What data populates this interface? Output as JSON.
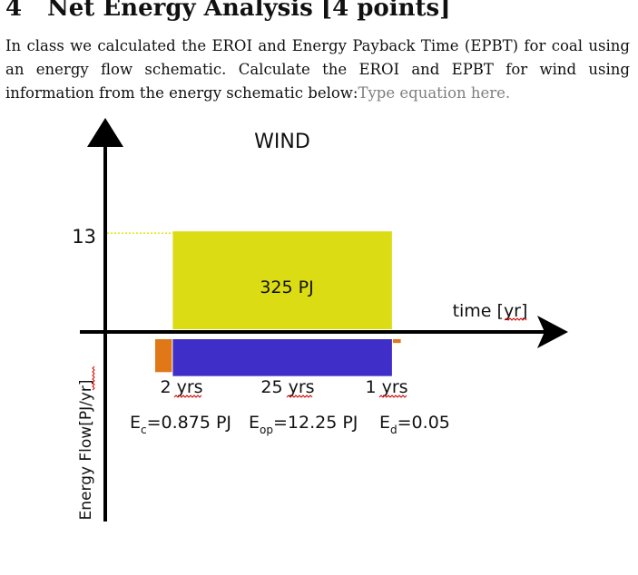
{
  "section": {
    "number": "4",
    "title": "Net Energy Analysis [4 points]"
  },
  "paragraph": {
    "line1_words": [
      "In",
      "class",
      "we",
      "calculated",
      "the",
      "EROI",
      "and",
      "Energy",
      "Payback",
      "Time",
      "(EPBT)",
      "for",
      "coal",
      "using"
    ],
    "line2_words": [
      "an",
      "energy",
      "flow",
      "schematic.",
      "Calculate",
      "the",
      "EROI",
      "and",
      "EPBT",
      "for",
      "wind",
      "using"
    ],
    "line3": "information from the energy schematic below:",
    "equation_placeholder": "Type equation here."
  },
  "schematic": {
    "title": "WIND",
    "y_axis_label": "Energy Flow[PJ/yr]",
    "x_axis_label": "time [yr]",
    "y_tick_label": "13",
    "y_tick_value": 13,
    "center_label": "325 PJ",
    "durations": [
      "2 yrs",
      "25 yrs",
      "1 yrs"
    ],
    "energy_labels": {
      "ec_main": "E",
      "ec_sub": "c",
      "ec_value": "=0.875 PJ",
      "eop_main": "E",
      "eop_sub": "op",
      "eop_value": "=12.25 PJ",
      "ed_main": "E",
      "ed_sub": "d",
      "ed_value": "=0.05"
    },
    "phases": [
      {
        "name": "construction",
        "start_yr": 0,
        "end_yr": 2,
        "flow_pj_per_yr": -0.4375,
        "color": "#e07818"
      },
      {
        "name": "operation_output",
        "start_yr": 2,
        "end_yr": 27,
        "flow_pj_per_yr": 13,
        "color": "#dcdc14"
      },
      {
        "name": "operation_input",
        "start_yr": 2,
        "end_yr": 27,
        "flow_pj_per_yr": -0.49,
        "color": "#3f2fc8"
      },
      {
        "name": "decommissioning",
        "start_yr": 27,
        "end_yr": 28,
        "flow_pj_per_yr": -0.05,
        "color": "#e07818"
      }
    ],
    "colors": {
      "axis": "#000000",
      "guide": "#e6e600",
      "squiggle": "#d40000"
    }
  }
}
